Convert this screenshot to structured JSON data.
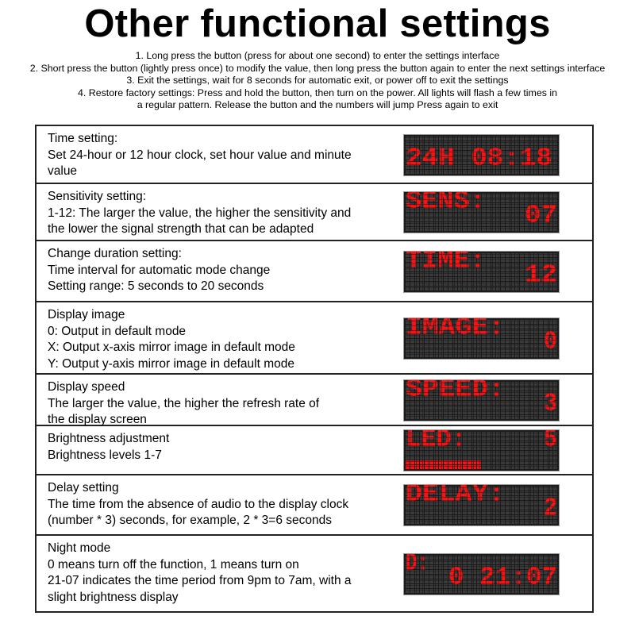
{
  "title": "Other functional settings",
  "steps": [
    "1. Long press the button (press for about one second) to enter the settings interface",
    "2. Short press the button (lightly press once) to modify the value, then long press the button again to enter the next settings interface",
    "3. Exit the settings, wait for 8 seconds for automatic exit, or power off to exit the settings",
    "4. Restore factory settings: Press and hold the button, then turn on the power. All lights will flash a few times in",
    "a regular pattern. Release the button and the numbers will jump Press again to exit"
  ],
  "colors": {
    "led_on": "#ff1010",
    "led_off": "#3a3a3a",
    "led_bg": "#1a1a1a"
  },
  "settings": [
    {
      "lines": [
        "Time setting:",
        "Set 24-hour or 12 hour clock, set hour value and minute",
        "value"
      ],
      "display": [
        "",
        "24H 08:18"
      ]
    },
    {
      "lines": [
        "Sensitivity setting:",
        "1-12: The larger the value, the higher the sensitivity and",
        "the lower the signal strength that can be adapted"
      ],
      "display": [
        "SENS:",
        "07"
      ]
    },
    {
      "lines": [
        "Change duration setting:",
        "Time interval for automatic mode change",
        "Setting range: 5 seconds to 20 seconds"
      ],
      "display": [
        "TIME:",
        "12"
      ]
    },
    {
      "lines": [
        "Display image",
        "0: Output in default mode",
        "X: Output x-axis mirror image in default mode",
        "Y: Output y-axis mirror image in default mode"
      ],
      "display": [
        "IMAGE:",
        "0"
      ]
    },
    {
      "lines": [
        "Display speed",
        "The larger the value, the higher the refresh rate of",
        "the display screen"
      ],
      "display": [
        "SPEED:",
        "3"
      ]
    },
    {
      "lines": [
        "Brightness adjustment",
        "Brightness levels 1-7"
      ],
      "display": [
        "LED:",
        "5"
      ]
    },
    {
      "lines": [
        "Delay setting",
        "The time from the absence of audio to the display clock",
        "(number * 3) seconds, for example, 2 * 3=6 seconds"
      ],
      "display": [
        "DELAY:",
        "2"
      ]
    },
    {
      "lines": [
        "Night mode",
        "0 means turn off the function, 1 means turn on",
        "21-07 indicates the time period from 9pm to 7am, with a",
        "slight brightness display"
      ],
      "display": [
        "D:",
        "0 21:07"
      ]
    }
  ]
}
